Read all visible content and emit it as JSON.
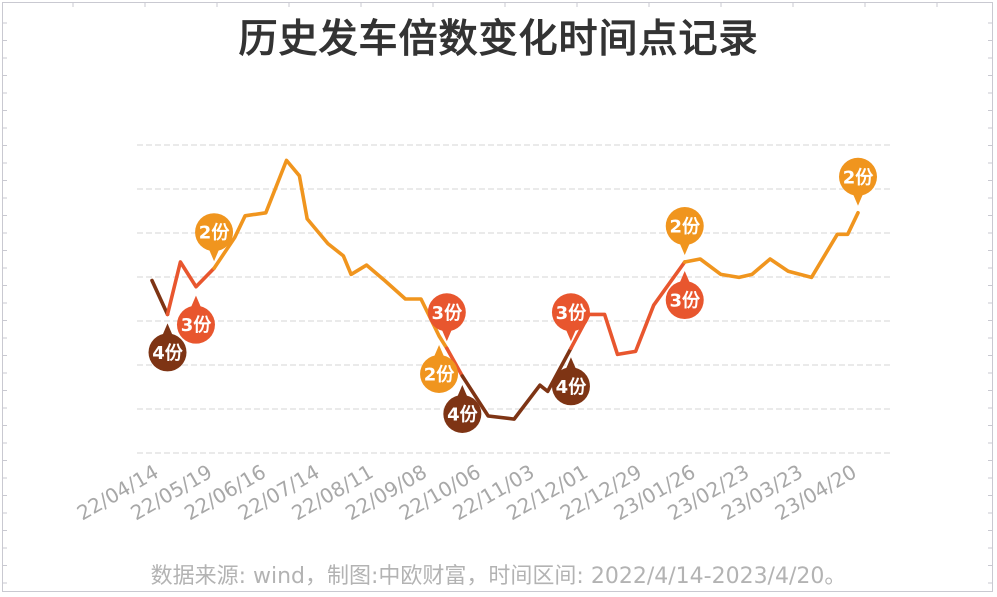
{
  "title": "历史发车倍数变化时间点记录",
  "footer": "数据来源: wind，制图:中欧财富，时间区间: 2022/4/14-2023/4/20。",
  "colors": {
    "share2": "#F0951E",
    "share3": "#E8562E",
    "share4": "#7E3414",
    "grid": "#e3e3e3",
    "axis_label": "#a8a8a8",
    "title": "#333333",
    "footer": "#b3b3b3",
    "frame": "#c9c9d1"
  },
  "chart_data": {
    "type": "line",
    "title": "历史发车倍数变化时间点记录",
    "xlabel": "",
    "ylabel": "",
    "grid": true,
    "y_axis_labels_shown": false,
    "note": "Y axis unlabeled; values are relative levels (0-100) estimated from pixel positions; line color indicates number of shares (份) dispatched.",
    "ylim": [
      0,
      100
    ],
    "x_tick_labels": [
      "22/04/14",
      "22/05/19",
      "22/06/16",
      "22/07/14",
      "22/08/11",
      "22/09/08",
      "22/10/06",
      "22/11/03",
      "22/12/01",
      "22/12/29",
      "23/01/26",
      "23/02/23",
      "23/03/23",
      "23/04/20"
    ],
    "series": [
      {
        "name": "4份",
        "color": "#7E3414",
        "points": [
          [
            0.0,
            56
          ],
          [
            0.3,
            45
          ]
        ]
      },
      {
        "name": "3份",
        "color": "#E8562E",
        "points": [
          [
            0.3,
            45
          ],
          [
            0.55,
            62
          ],
          [
            0.85,
            54
          ],
          [
            1.2,
            60
          ]
        ]
      },
      {
        "name": "2份",
        "color": "#F0951E",
        "points": [
          [
            1.2,
            60
          ],
          [
            1.6,
            70
          ],
          [
            1.8,
            77
          ],
          [
            2.2,
            78
          ],
          [
            2.6,
            95
          ],
          [
            2.85,
            90
          ],
          [
            3.0,
            76
          ],
          [
            3.4,
            68
          ],
          [
            3.7,
            64
          ],
          [
            3.85,
            58
          ],
          [
            4.15,
            61
          ],
          [
            4.5,
            56
          ],
          [
            4.9,
            50
          ],
          [
            5.2,
            50
          ],
          [
            5.55,
            38
          ],
          [
            5.7,
            34
          ]
        ]
      },
      {
        "name": "3份",
        "color": "#E8562E",
        "points": [
          [
            5.7,
            34
          ],
          [
            6.0,
            25
          ]
        ]
      },
      {
        "name": "4份",
        "color": "#7E3414",
        "points": [
          [
            6.0,
            25
          ],
          [
            6.5,
            12
          ],
          [
            7.0,
            11
          ],
          [
            7.5,
            22
          ],
          [
            7.65,
            20
          ],
          [
            8.1,
            34
          ]
        ]
      },
      {
        "name": "3份",
        "color": "#E8562E",
        "points": [
          [
            8.1,
            34
          ],
          [
            8.45,
            45
          ],
          [
            8.75,
            45
          ],
          [
            9.0,
            32
          ],
          [
            9.35,
            33
          ],
          [
            9.7,
            48
          ],
          [
            10.3,
            62
          ]
        ]
      },
      {
        "name": "2份",
        "color": "#F0951E",
        "points": [
          [
            10.3,
            62
          ],
          [
            10.6,
            63
          ],
          [
            11.0,
            58
          ],
          [
            11.35,
            57
          ],
          [
            11.6,
            58
          ],
          [
            11.95,
            63
          ],
          [
            12.3,
            59
          ],
          [
            12.75,
            57
          ],
          [
            13.25,
            71
          ],
          [
            13.45,
            71
          ],
          [
            13.65,
            78
          ]
        ]
      }
    ],
    "annotations": [
      {
        "label": "4份",
        "x": 0.3,
        "position": "below",
        "color": "#7E3414"
      },
      {
        "label": "3份",
        "x": 0.85,
        "position": "below",
        "color": "#E8562E"
      },
      {
        "label": "2份",
        "x": 1.2,
        "position": "above",
        "color": "#F0951E"
      },
      {
        "label": "2份",
        "x": 5.55,
        "position": "below",
        "color": "#F0951E"
      },
      {
        "label": "3份",
        "x": 5.7,
        "position": "above",
        "color": "#E8562E"
      },
      {
        "label": "4份",
        "x": 6.0,
        "position": "below",
        "color": "#7E3414"
      },
      {
        "label": "3份",
        "x": 8.1,
        "position": "above",
        "color": "#E8562E"
      },
      {
        "label": "4份",
        "x": 8.1,
        "position": "below",
        "color": "#7E3414"
      },
      {
        "label": "2份",
        "x": 10.3,
        "position": "above",
        "color": "#F0951E"
      },
      {
        "label": "3份",
        "x": 10.3,
        "position": "below",
        "color": "#E8562E"
      },
      {
        "label": "2份",
        "x": 13.65,
        "position": "above",
        "color": "#F0951E"
      }
    ]
  }
}
